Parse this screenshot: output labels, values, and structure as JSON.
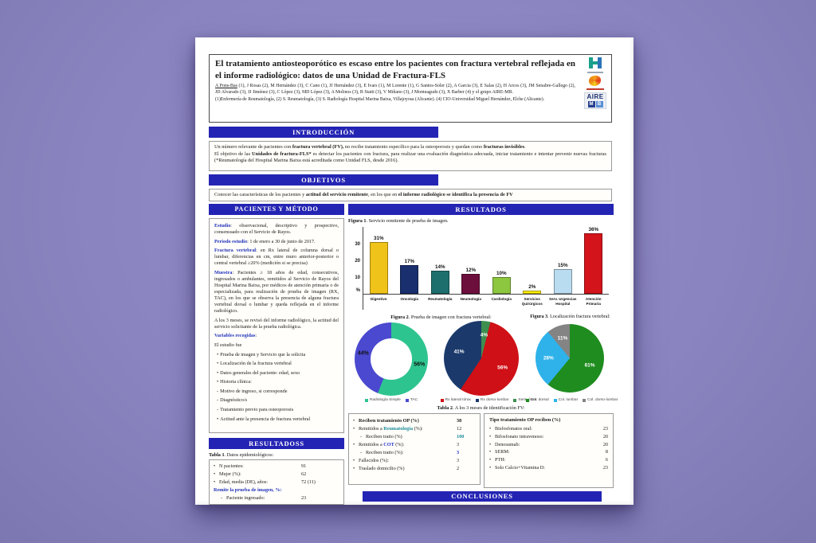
{
  "poster": {
    "header": {
      "title": "El tratamiento antiosteoporótico es escaso entre los pacientes con fractura vertebral reflejada en el informe radiológico: datos de una Unidad de Fractura-FLS",
      "authors": [
        {
          "t": "A Pons-Bas",
          "u": 1
        },
        {
          "t": " (1), J Rosas (2), M Hernández (3), C Cano (1), JI Hernández (3),  E Ivars (1), M Lorente (1), G Santos-Soler (2), A Garcia (3),  E Salas (2), H Arcos (3),  JM Senabre-Gallego (2), JD Alvarado (3), JJ Jiménez (3), C López (3), MD López (3), A Molinos (3), B Statti (3), V Miñano (3), J Monteagudo (3), X Barber (4) y el grupo AIRE-MB."
        }
      ],
      "affiliations": "(1)Enfermería de Reumatología, (2) S. Reumatología, (3) S. Radiología Hospital Marina Baixa, Villajoyosa (Alicante). (4) CIO-Universidad Miguel Hernández, Elche (Alicante).",
      "aire_logo": {
        "aire": "AIRE",
        "m": "M",
        "b": "B"
      }
    },
    "sections": {
      "introduccion": "INTRODUCCIÓN",
      "objetivos": "OBJETIVOS",
      "pacientes_metodo": "PACIENTES Y MÉTODO",
      "resultados": "RESULTADOS",
      "resultadoss": "RESULTADOSS",
      "conclusiones": "CONCLUSIONES"
    },
    "introduccion_lines": [
      [
        {
          "t": "Un número relevante de pacientes con "
        },
        {
          "t": "fractura vertebral (FV),",
          "b": 1
        },
        {
          "t": " no recibe tratamiento específico para la osteoporosis y quedan como "
        },
        {
          "t": "fracturas invisibles",
          "b": 1
        },
        {
          "t": "."
        }
      ],
      [
        {
          "t": "El objetivo de las "
        },
        {
          "t": "Unidades de fractura-FLS*",
          "b": 1
        },
        {
          "t": " es detectar los pacientes con fractura, para realizar una evaluación diagnóstica adecuada, iniciar tratamiento e intentar prevenir nuevas fracturas (*Reumatología del Hospital Marina Baixa está acreditada como Unidad FLS, desde 2016)."
        }
      ]
    ],
    "objetivos_line": [
      {
        "t": "Conocer las características de los pacientes y "
      },
      {
        "t": "actitud del servicio remitente",
        "b": 1
      },
      {
        "t": ", en los que en "
      },
      {
        "t": "el informe radiológico se identifica la presencia de FV",
        "b": 1
      }
    ],
    "method": {
      "paragraphs": [
        {
          "segs": [
            {
              "t": "Estudio",
              "b": 1,
              "c": "#2233bb"
            },
            {
              "t": ": observacional, descriptivo y prospectivo, consensuado con el Servicio de Rayos."
            }
          ]
        },
        {
          "segs": [
            {
              "t": "Periodo estudio",
              "b": 1,
              "c": "#2233bb"
            },
            {
              "t": ": 1 de enero a 30 de junio de 2017."
            }
          ]
        },
        {
          "segs": [
            {
              "t": "Fractura vertebral",
              "b": 1,
              "c": "#2233bb"
            },
            {
              "t": ": en Rx lateral de columna dorsal o lumbar, diferencias en cm, entre muro anterior-posterior o central vertebral ≥20% (medición si se precisa)"
            }
          ]
        },
        {
          "segs": [
            {
              "t": "Muestra",
              "b": 1,
              "c": "#2233bb"
            },
            {
              "t": ": Pacientes ≥ 18 años de edad, consecutivos, ingresados o ambulantes, remitidos al Servicio de Rayos del Hospital Marina Baixa, por médicos de atención primaria o de  especializada, para realización de prueba de imagen (RX, TAC), en los que se observa la presencia de alguna fractura vertebral dorsal o lumbar y queda reflejada en el informe radiológico."
            }
          ]
        },
        {
          "segs": [
            {
              "t": "A los 3 meses, se revisó del informe radiológico, la actitud del servicio solicitante de la prueba radiológica."
            }
          ]
        },
        {
          "segs": [
            {
              "t": "Variables recogidas",
              "b": 1,
              "c": "#2233bb"
            },
            {
              "t": ":"
            }
          ]
        },
        {
          "segs": [
            {
              "t": "El estudio fue"
            }
          ]
        },
        {
          "bullet": "•",
          "segs": [
            {
              "t": "Prueba de imagen y Servicio que la solicita"
            }
          ]
        },
        {
          "bullet": "•",
          "segs": [
            {
              "t": "Localización de la fractura vertebral"
            }
          ]
        },
        {
          "bullet": "•",
          "segs": [
            {
              "t": "Datos generales del paciente: edad, sexo"
            }
          ]
        },
        {
          "bullet": "•",
          "segs": [
            {
              "t": "Historia clínica:"
            }
          ]
        },
        {
          "bullet": "-",
          "indent": 1,
          "segs": [
            {
              "t": "Motivo de ingreso, si corresponde"
            }
          ]
        },
        {
          "bullet": "-",
          "indent": 1,
          "segs": [
            {
              "t": "Diagnóstico/s"
            }
          ]
        },
        {
          "bullet": "-",
          "indent": 1,
          "segs": [
            {
              "t": "Tratamiento previo para osteoporosis"
            }
          ]
        },
        {
          "bullet": "•",
          "segs": [
            {
              "t": "Actitud ante la presencia de fractura vertebral"
            }
          ]
        }
      ]
    },
    "table1": {
      "caption": [
        {
          "t": "Tabla 1",
          "b": 1
        },
        {
          "t": ". Datos epidemiológicos:"
        }
      ],
      "rows": [
        {
          "bullet": "•",
          "segs": [
            {
              "t": "N pacientes:"
            }
          ],
          "value": "91"
        },
        {
          "bullet": "•",
          "segs": [
            {
              "t": "Mujer (%):"
            }
          ],
          "value": "62"
        },
        {
          "bullet": "•",
          "segs": [
            {
              "t": "Edad, media (DE), años:"
            }
          ],
          "value": "72 (11)"
        },
        {
          "segs": [
            {
              "t": "Remite la prueba de imagen",
              "b": 1,
              "c": "#2233bb"
            },
            {
              "t": ", %:",
              "b": 1,
              "c": "#2233bb"
            }
          ]
        },
        {
          "bullet": "-",
          "indent": 1,
          "segs": [
            {
              "t": "Paciente ingresado:"
            }
          ],
          "value": "23"
        }
      ]
    },
    "table2": {
      "caption": [
        {
          "t": "Tabla 2",
          "b": 1
        },
        {
          "t": ". A los 3 meses de identificación FV:"
        }
      ],
      "left_rows": [
        {
          "bullet": "•",
          "segs": [
            {
              "t": "Reciben tratamiento OP (%)",
              "b": 1
            }
          ],
          "value": "38",
          "vb": 1
        },
        {
          "bullet": "•",
          "segs": [
            {
              "t": "Remitidos a "
            },
            {
              "t": "Reumatología",
              "b": 1,
              "c": "#1a8a9a"
            },
            {
              "t": " (%):"
            }
          ],
          "value": "12"
        },
        {
          "bullet": "-",
          "indent": 1,
          "segs": [
            {
              "t": "Reciben tratto (%)"
            }
          ],
          "value": "100",
          "vb": 1,
          "vc": "#1a8a9a"
        },
        {
          "bullet": "•",
          "segs": [
            {
              "t": "Remitidos a "
            },
            {
              "t": "COT",
              "b": 1,
              "c": "#2233cc"
            },
            {
              "t": " (%):"
            }
          ],
          "value": "3"
        },
        {
          "bullet": "-",
          "indent": 1,
          "segs": [
            {
              "t": "Reciben tratto (%):"
            }
          ],
          "value": "3",
          "vb": 1,
          "vc": "#2233cc"
        },
        {
          "bullet": "•",
          "segs": [
            {
              "t": "Fallecidos (%):"
            }
          ],
          "value": "3"
        },
        {
          "bullet": "•",
          "segs": [
            {
              "t": "Traslado domicilio (%)"
            }
          ],
          "value": "2"
        }
      ],
      "right_title": "Tipo tratamiento OP reciben (%)",
      "right_rows": [
        {
          "bullet": "•",
          "label": "Bisfosfonatos oral:",
          "value": "23"
        },
        {
          "bullet": "•",
          "label": "Bifosfonato intravenoso:",
          "value": "20"
        },
        {
          "bullet": "•",
          "label": "Denosumab:",
          "value": "20"
        },
        {
          "bullet": "•",
          "label": "SERM:",
          "value": "8"
        },
        {
          "bullet": "•",
          "label": "PTH:",
          "value": "6"
        },
        {
          "bullet": "•",
          "label": "Solo Calcio+Vitamina D:",
          "value": "23"
        }
      ]
    }
  },
  "chart_data": [
    {
      "type": "bar",
      "title": "Figura 1. Servicio remitente de prueba de imagen.",
      "caption": [
        {
          "t": "Figura 1",
          "b": 1
        },
        {
          "t": ". Servicio remitente de prueba de imagen."
        }
      ],
      "categories": [
        "Digestivo",
        "Oncología",
        "Reumatología",
        "Neumología",
        "Cardiología",
        "Servicios Quirúrgicos",
        "Serv. Urgencias Hospital",
        "Atención Primaria"
      ],
      "values": [
        31,
        17,
        14,
        12,
        10,
        2,
        15,
        36
      ],
      "labels": [
        "31%",
        "17%",
        "14%",
        "12%",
        "10%",
        "2%",
        "15%",
        "36%"
      ],
      "colors": [
        "#efc319",
        "#1a2f6e",
        "#1d6f6e",
        "#6d0f3d",
        "#8dc63f",
        "#ffee00",
        "#badcf0",
        "#d3141b"
      ],
      "xlabel": "",
      "ylabel": "%",
      "yticks": [
        10,
        20,
        30
      ],
      "ylim": [
        0,
        40
      ],
      "grid": false,
      "legend": false
    },
    {
      "type": "donut",
      "title": "Figura 2. Prueba de imagen con fractura vertebral:",
      "caption": [
        {
          "t": "Figura 2",
          "b": 1
        },
        {
          "t": ". Prueba de imagen con fractura vertebral:"
        }
      ],
      "series": [
        {
          "name": "Radiología Simple",
          "value": 56,
          "label": "56%",
          "color": "#2ec490"
        },
        {
          "name": "TAC",
          "value": 44,
          "label": "44%",
          "color": "#4a49cf"
        }
      ],
      "rotate_deg": 0,
      "label_color": "#111111",
      "legend_position": "bottom"
    },
    {
      "type": "pie",
      "title": "Figura 2. Prueba de imagen con fractura vertebral:",
      "series": [
        {
          "name": "Rx lateral tórax",
          "value": 56,
          "label": "56%",
          "color": "#cf1016"
        },
        {
          "name": "Rx dorso-lumbar",
          "value": 41,
          "label": "41%",
          "color": "#1b3a6b"
        },
        {
          "name": "Serie ósea",
          "value": 4,
          "label": "4%",
          "color": "#3d8f4f"
        }
      ],
      "rotate_deg": 14,
      "label_color": "#ffffff",
      "legend_position": "bottom"
    },
    {
      "type": "pie",
      "title": "Figura 3. Localización fractura vertebral:",
      "caption": [
        {
          "t": "Figura 3",
          "b": 1
        },
        {
          "t": ". Localización fractura vertebral:"
        }
      ],
      "series": [
        {
          "name": "Col. dorsal",
          "value": 61,
          "label": "61%",
          "color": "#1f8c1f"
        },
        {
          "name": "Col. lumbar",
          "value": 28,
          "label": "28%",
          "color": "#2fb2ea"
        },
        {
          "name": "Col. dorso-lumbar",
          "value": 11,
          "label": "11%",
          "color": "#848484"
        }
      ],
      "rotate_deg": 0,
      "label_color": "#ffffff",
      "legend_position": "bottom"
    }
  ]
}
